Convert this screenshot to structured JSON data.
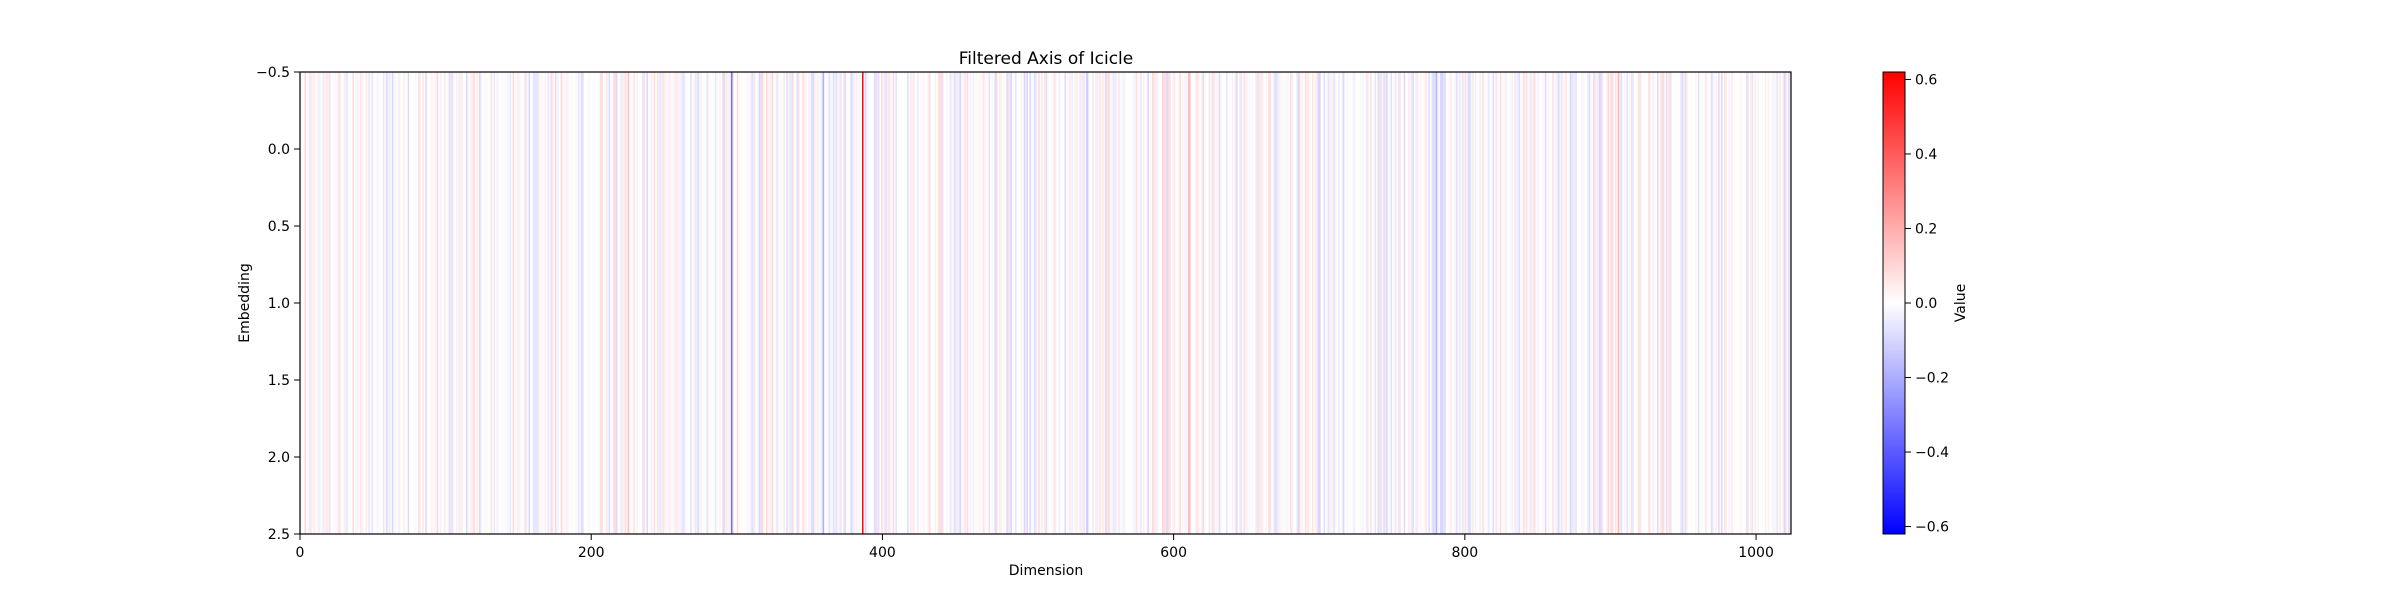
{
  "chart_data": {
    "type": "heatmap",
    "title": "Filtered Axis of Icicle",
    "xlabel": "Dimension",
    "ylabel": "Embedding",
    "colorbar_label": "Value",
    "colormap": "bwr",
    "n_columns": 1024,
    "n_rows": 3,
    "xlim": [
      0,
      1024
    ],
    "ylim": [
      2.5,
      -0.5
    ],
    "vmin": -0.62,
    "vmax": 0.62,
    "x_ticks": [
      0,
      200,
      400,
      600,
      800,
      1000
    ],
    "x_tick_labels": [
      "0",
      "200",
      "400",
      "600",
      "800",
      "1000"
    ],
    "y_ticks": [
      -0.5,
      0.0,
      0.5,
      1.0,
      1.5,
      2.0,
      2.5
    ],
    "y_tick_labels": [
      "−0.5",
      "0.0",
      "0.5",
      "1.0",
      "1.5",
      "2.0",
      "2.5"
    ],
    "colorbar_ticks": [
      0.6,
      0.4,
      0.2,
      0.0,
      -0.2,
      -0.4,
      -0.6
    ],
    "colorbar_tick_labels": [
      "0.6",
      "0.4",
      "0.2",
      "0.0",
      "−0.2",
      "−0.4",
      "−0.6"
    ],
    "notable_columns": [
      {
        "dimension": 296,
        "value": -0.35
      },
      {
        "dimension": 386,
        "value": 0.62
      },
      {
        "dimension": 359,
        "value": -0.2
      },
      {
        "dimension": 610,
        "value": 0.2
      },
      {
        "dimension": 780,
        "value": -0.18
      },
      {
        "dimension": 905,
        "value": 0.18
      },
      {
        "dimension": 225,
        "value": 0.15
      },
      {
        "dimension": 540,
        "value": -0.15
      }
    ],
    "background_amplitude": 0.1,
    "grid": false,
    "colors": {
      "low": "#0000ff",
      "mid": "#ffffff",
      "high": "#ff0000"
    }
  }
}
